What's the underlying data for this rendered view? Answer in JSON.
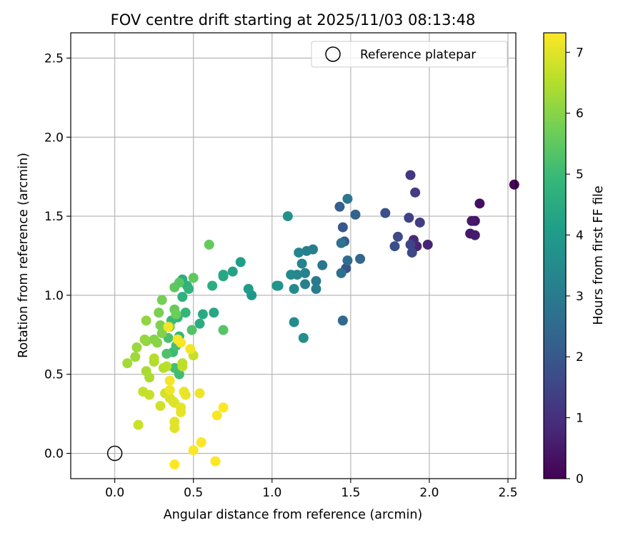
{
  "chart_data": {
    "type": "scatter",
    "title": "FOV centre drift starting at 2025/11/03 08:13:48",
    "xlabel": "Angular distance from reference (arcmin)",
    "ylabel": "Rotation from reference (arcmin)",
    "xlim": [
      -0.28,
      2.55
    ],
    "ylim": [
      -0.16,
      2.66
    ],
    "xticks": [
      "0.0",
      "0.5",
      "1.0",
      "1.5",
      "2.0",
      "2.5"
    ],
    "xtick_values": [
      0.0,
      0.5,
      1.0,
      1.5,
      2.0,
      2.5
    ],
    "yticks": [
      "0.0",
      "0.5",
      "1.0",
      "1.5",
      "2.0",
      "2.5"
    ],
    "ytick_values": [
      0.0,
      0.5,
      1.0,
      1.5,
      2.0,
      2.5
    ],
    "grid": true,
    "legend": {
      "location": "upper right",
      "label": "Reference platepar"
    },
    "reference_point": {
      "x": 0.0,
      "y": 0.0
    },
    "colorbar": {
      "label": "Hours from first FF file",
      "colormap": "viridis",
      "range": [
        0,
        7.32
      ],
      "ticks": [
        "0",
        "1",
        "2",
        "3",
        "4",
        "5",
        "6",
        "7"
      ],
      "tick_values": [
        0,
        1,
        2,
        3,
        4,
        5,
        6,
        7
      ]
    },
    "points": [
      [
        2.54,
        1.7,
        0.1
      ],
      [
        2.32,
        1.58,
        0.3
      ],
      [
        2.29,
        1.47,
        0.4
      ],
      [
        2.27,
        1.47,
        0.5
      ],
      [
        2.26,
        1.39,
        0.45
      ],
      [
        2.29,
        1.38,
        0.55
      ],
      [
        1.99,
        1.32,
        0.7
      ],
      [
        1.92,
        1.31,
        0.8
      ],
      [
        1.9,
        1.35,
        0.85
      ],
      [
        1.88,
        1.76,
        1.2
      ],
      [
        1.91,
        1.65,
        1.3
      ],
      [
        1.94,
        1.46,
        1.35
      ],
      [
        1.87,
        1.49,
        1.45
      ],
      [
        1.88,
        1.32,
        1.5
      ],
      [
        1.89,
        1.27,
        1.6
      ],
      [
        1.8,
        1.37,
        1.7
      ],
      [
        1.78,
        1.31,
        1.75
      ],
      [
        1.72,
        1.52,
        1.8
      ],
      [
        1.47,
        1.17,
        1.9
      ],
      [
        1.45,
        1.43,
        2.0
      ],
      [
        1.46,
        1.34,
        2.1
      ],
      [
        1.43,
        1.56,
        2.2
      ],
      [
        1.53,
        1.51,
        2.3
      ],
      [
        1.56,
        1.23,
        2.4
      ],
      [
        1.45,
        0.84,
        2.5
      ],
      [
        1.48,
        1.22,
        2.6
      ],
      [
        1.44,
        1.14,
        2.7
      ],
      [
        1.44,
        1.33,
        2.75
      ],
      [
        1.48,
        1.61,
        2.9
      ],
      [
        1.32,
        1.19,
        2.95
      ],
      [
        1.28,
        1.09,
        3.0
      ],
      [
        1.28,
        1.04,
        3.05
      ],
      [
        1.26,
        1.29,
        3.1
      ],
      [
        1.22,
        1.28,
        3.15
      ],
      [
        1.21,
        1.07,
        3.2
      ],
      [
        1.21,
        1.14,
        3.25
      ],
      [
        1.19,
        1.2,
        3.3
      ],
      [
        1.17,
        1.27,
        3.35
      ],
      [
        1.16,
        1.13,
        3.4
      ],
      [
        1.12,
        1.13,
        3.45
      ],
      [
        1.14,
        1.04,
        3.5
      ],
      [
        1.14,
        0.83,
        3.55
      ],
      [
        1.2,
        0.73,
        3.6
      ],
      [
        1.1,
        1.5,
        3.7
      ],
      [
        1.03,
        1.06,
        3.75
      ],
      [
        1.04,
        1.06,
        3.8
      ],
      [
        0.87,
        1.0,
        3.9
      ],
      [
        0.85,
        1.04,
        4.0
      ],
      [
        0.8,
        1.21,
        4.1
      ],
      [
        0.75,
        1.15,
        4.2
      ],
      [
        0.69,
        1.12,
        4.3
      ],
      [
        0.69,
        1.13,
        4.35
      ],
      [
        0.63,
        0.89,
        4.4
      ],
      [
        0.56,
        0.88,
        4.45
      ],
      [
        0.54,
        0.82,
        4.5
      ],
      [
        0.62,
        1.06,
        4.55
      ],
      [
        0.43,
        1.1,
        4.6
      ],
      [
        0.46,
        1.06,
        4.65
      ],
      [
        0.43,
        0.99,
        4.7
      ],
      [
        0.47,
        1.04,
        4.75
      ],
      [
        0.45,
        0.89,
        4.8
      ],
      [
        0.4,
        0.86,
        4.85
      ],
      [
        0.41,
        0.74,
        4.9
      ],
      [
        0.36,
        0.84,
        4.95
      ],
      [
        0.37,
        0.64,
        5.0
      ],
      [
        0.41,
        0.5,
        5.05
      ],
      [
        0.38,
        0.54,
        5.1
      ],
      [
        0.39,
        0.68,
        5.15
      ],
      [
        0.34,
        0.73,
        5.2
      ],
      [
        0.33,
        0.63,
        5.25
      ],
      [
        0.49,
        0.78,
        5.3
      ],
      [
        0.69,
        0.78,
        5.35
      ],
      [
        0.41,
        1.08,
        5.4
      ],
      [
        0.38,
        1.05,
        5.45
      ],
      [
        0.5,
        1.11,
        5.5
      ],
      [
        0.6,
        1.32,
        5.55
      ],
      [
        0.38,
        0.91,
        5.6
      ],
      [
        0.39,
        0.88,
        5.65
      ],
      [
        0.35,
        0.8,
        5.7
      ],
      [
        0.3,
        0.97,
        5.75
      ],
      [
        0.28,
        0.89,
        5.8
      ],
      [
        0.29,
        0.81,
        5.85
      ],
      [
        0.3,
        0.76,
        5.9
      ],
      [
        0.25,
        0.72,
        5.95
      ],
      [
        0.27,
        0.7,
        6.0
      ],
      [
        0.2,
        0.71,
        6.05
      ],
      [
        0.2,
        0.84,
        6.1
      ],
      [
        0.19,
        0.72,
        6.15
      ],
      [
        0.14,
        0.67,
        6.2
      ],
      [
        0.13,
        0.61,
        6.25
      ],
      [
        0.08,
        0.57,
        6.3
      ],
      [
        0.2,
        0.52,
        6.35
      ],
      [
        0.22,
        0.48,
        6.4
      ],
      [
        0.25,
        0.58,
        6.45
      ],
      [
        0.25,
        0.6,
        6.5
      ],
      [
        0.31,
        0.54,
        6.5
      ],
      [
        0.33,
        0.55,
        6.55
      ],
      [
        0.43,
        0.55,
        6.6
      ],
      [
        0.43,
        0.57,
        6.6
      ],
      [
        0.5,
        0.62,
        6.65
      ],
      [
        0.18,
        0.39,
        6.7
      ],
      [
        0.22,
        0.37,
        6.7
      ],
      [
        0.15,
        0.18,
        6.75
      ],
      [
        0.29,
        0.3,
        6.8
      ],
      [
        0.32,
        0.38,
        6.85
      ],
      [
        0.35,
        0.35,
        6.9
      ],
      [
        0.37,
        0.33,
        6.9
      ],
      [
        0.38,
        0.32,
        6.95
      ],
      [
        0.38,
        0.2,
        7.0
      ],
      [
        0.38,
        0.16,
        7.0
      ],
      [
        0.42,
        0.26,
        7.05
      ],
      [
        0.42,
        0.29,
        7.05
      ],
      [
        0.45,
        0.37,
        7.1
      ],
      [
        0.44,
        0.39,
        7.1
      ],
      [
        0.54,
        0.38,
        7.15
      ],
      [
        0.35,
        0.4,
        7.15
      ],
      [
        0.35,
        0.46,
        7.2
      ],
      [
        0.34,
        0.8,
        7.2
      ],
      [
        0.48,
        0.66,
        7.2
      ],
      [
        0.42,
        0.7,
        7.25
      ],
      [
        0.4,
        0.72,
        7.25
      ],
      [
        0.65,
        0.24,
        7.25
      ],
      [
        0.69,
        0.29,
        7.3
      ],
      [
        0.55,
        0.07,
        7.3
      ],
      [
        0.5,
        0.02,
        7.3
      ],
      [
        0.64,
        -0.05,
        7.32
      ],
      [
        0.38,
        -0.07,
        7.32
      ]
    ]
  }
}
